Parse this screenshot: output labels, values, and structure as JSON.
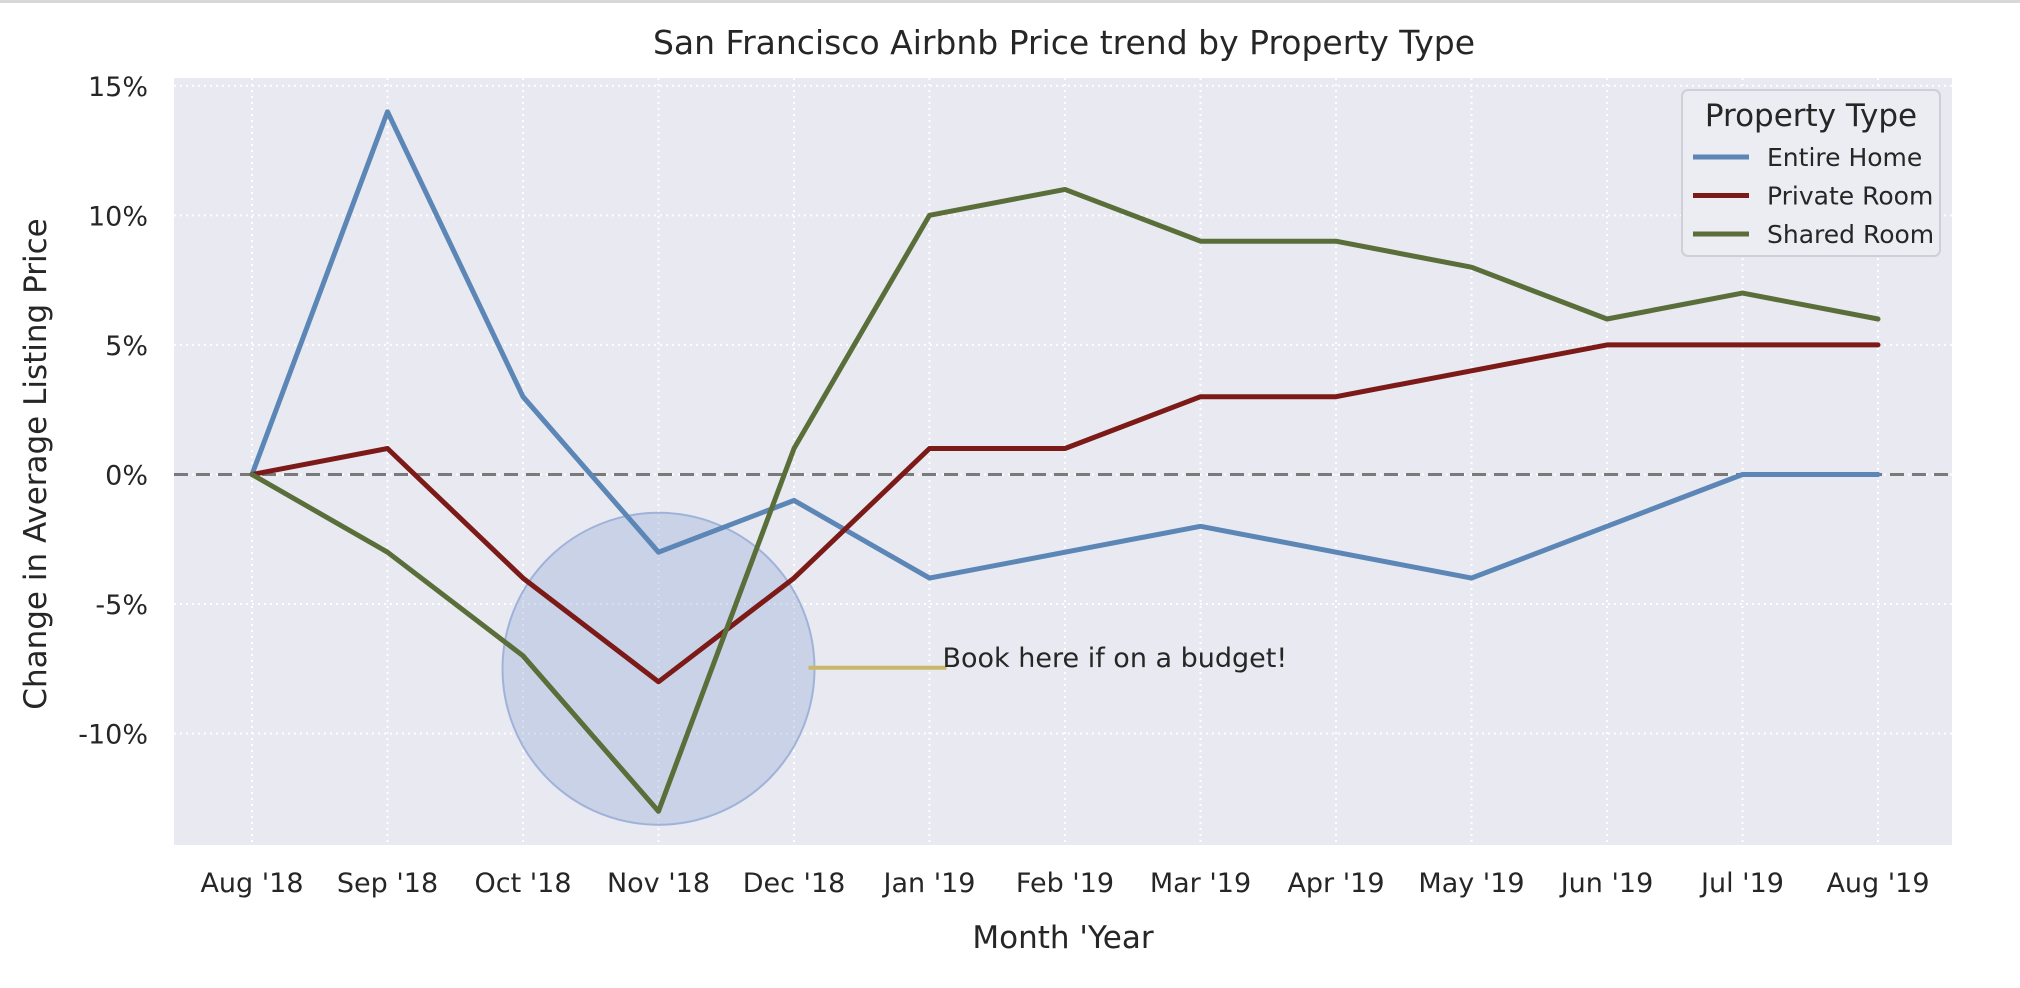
{
  "chart_data": {
    "type": "line",
    "title": "San Francisco Airbnb Price trend by Property Type",
    "xlabel": "Month 'Year",
    "ylabel": "Change in Average Listing Price",
    "categories": [
      "Aug '18",
      "Sep '18",
      "Oct '18",
      "Nov '18",
      "Dec '18",
      "Jan '19",
      "Feb '19",
      "Mar '19",
      "Apr '19",
      "May '19",
      "Jun '19",
      "Jul '19",
      "Aug '19"
    ],
    "ylim": [
      -14.3,
      15.3
    ],
    "yticks": [
      15,
      10,
      5,
      0,
      -5,
      -10
    ],
    "ytick_labels": [
      "15%",
      "10%",
      "5%",
      "0%",
      "-5%",
      "-10%"
    ],
    "grid": true,
    "reference_line": {
      "y": 0,
      "style": "dashed",
      "color": "#7a7a7a"
    },
    "legend": {
      "title": "Property Type",
      "position": "top-right"
    },
    "series": [
      {
        "name": "Entire Home",
        "color": "#5b86b6",
        "values": [
          0,
          14,
          3,
          -3,
          -1,
          -4,
          -3,
          -2,
          -3,
          -4,
          -2,
          0,
          0
        ]
      },
      {
        "name": "Private Room",
        "color": "#7b1a17",
        "values": [
          0,
          1,
          -4,
          -8,
          -4,
          1,
          1,
          3,
          3,
          4,
          5,
          5,
          5
        ]
      },
      {
        "name": "Shared Room",
        "color": "#5a6e3a",
        "values": [
          0,
          -3,
          -7,
          -13,
          1,
          10,
          11,
          9,
          9,
          8,
          6,
          7,
          6
        ]
      }
    ],
    "annotation": {
      "text": "Book here if on a budget!",
      "highlight_center": {
        "x": "Nov '18",
        "y": -7.5
      },
      "line_color": "#c9b86a",
      "circle_color": "#9fb3d9"
    },
    "colors": {
      "plot_background": "#e9e9f1",
      "grid": "#ffffff"
    }
  }
}
